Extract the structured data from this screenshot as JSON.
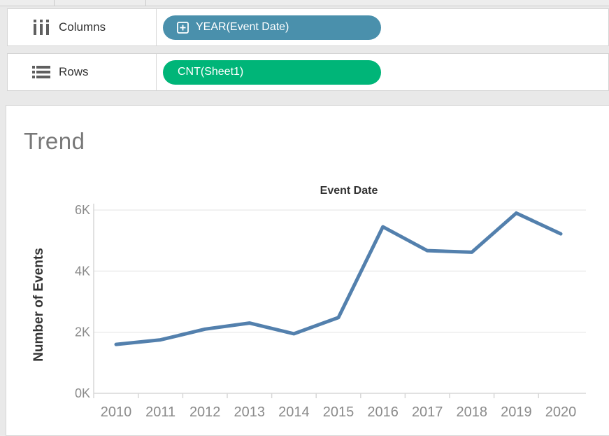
{
  "shelves": {
    "columns": {
      "label": "Columns",
      "pill": {
        "text": "YEAR(Event Date)",
        "color": "#4a90ac",
        "expandable": true
      }
    },
    "rows": {
      "label": "Rows",
      "pill": {
        "text": "CNT(Sheet1)",
        "color": "#00b578",
        "expandable": false
      }
    }
  },
  "sheet": {
    "title": "Trend"
  },
  "chart_data": {
    "type": "line",
    "title": "Event Date",
    "xlabel": "",
    "ylabel": "Number of Events",
    "categories": [
      "2010",
      "2011",
      "2012",
      "2013",
      "2014",
      "2015",
      "2016",
      "2017",
      "2018",
      "2019",
      "2020"
    ],
    "series": [
      {
        "name": "CNT(Sheet1)",
        "values": [
          1600,
          1750,
          2100,
          2300,
          1950,
          2480,
          5450,
          4670,
          4620,
          5900,
          5220
        ]
      }
    ],
    "ylim": [
      0,
      6500
    ],
    "yticks": [
      0,
      2000,
      4000,
      6000
    ],
    "ytick_labels": [
      "0K",
      "2K",
      "4K",
      "6K"
    ],
    "grid": true,
    "legend": "none",
    "line_color": "#5380ad",
    "grid_color": "#ececec",
    "axis_color": "#d7d7d7",
    "tick_label_color": "#8a8a8a",
    "title_color": "#333333"
  }
}
